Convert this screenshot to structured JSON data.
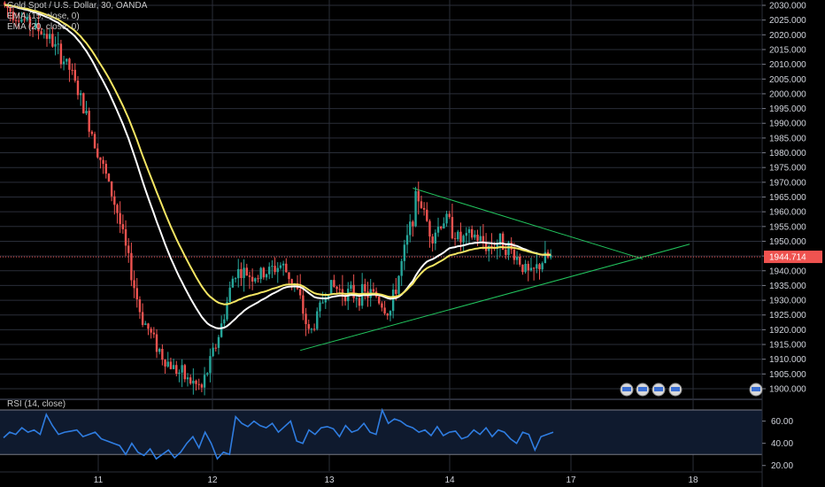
{
  "legend": {
    "title": "Gold Spot / U.S. Dollar, 30, OANDA",
    "ema15": "EMA (15, close, 0)",
    "ema20": "EMA (20, close, 0)"
  },
  "rsi_legend": "RSI (14, close)",
  "current_price_label": "1944.714",
  "colors": {
    "background": "#000000",
    "grid": "#2a2e39",
    "up": "#26a69a",
    "down": "#ef5350",
    "ema15": "#ffffff",
    "ema20": "#f5e663",
    "trendline": "#22c55e",
    "rsi_line": "#2f7de1",
    "rsi_band": "#0f1a2e",
    "price_tag": "#ef5350",
    "price_line": "#ef5350"
  },
  "chart_data": [
    {
      "type": "candlestick",
      "title": "Gold Spot / U.S. Dollar, 30, OANDA",
      "x_tick_labels": [
        "11",
        "12",
        "13",
        "14",
        "17",
        "18"
      ],
      "y_tick_labels": [
        "2030.000",
        "2025.000",
        "2020.000",
        "2015.000",
        "2010.000",
        "2005.000",
        "2000.000",
        "1995.000",
        "1990.000",
        "1985.000",
        "1980.000",
        "1975.000",
        "1970.000",
        "1965.000",
        "1960.000",
        "1955.000",
        "1950.000",
        "1945.000",
        "1940.000",
        "1935.000",
        "1930.000",
        "1925.000",
        "1920.000",
        "1915.000",
        "1910.000",
        "1905.000",
        "1900.000"
      ],
      "ylim": [
        1898.5,
        2032
      ],
      "last_price": 1944.714,
      "anchors_time_price": [
        [
          0.0,
          2031
        ],
        [
          0.5,
          2025
        ],
        [
          1.0,
          2020
        ],
        [
          1.5,
          2008
        ],
        [
          2.0,
          1985
        ],
        [
          2.5,
          1960
        ],
        [
          3.0,
          1925
        ],
        [
          3.5,
          1910
        ],
        [
          4.0,
          1903
        ],
        [
          4.3,
          1900
        ],
        [
          4.7,
          1920
        ],
        [
          5.0,
          1940
        ],
        [
          5.5,
          1938
        ],
        [
          6.0,
          1942
        ],
        [
          6.3,
          1935
        ],
        [
          6.6,
          1918
        ],
        [
          7.0,
          1935
        ],
        [
          7.5,
          1932
        ],
        [
          8.0,
          1932
        ],
        [
          8.3,
          1925
        ],
        [
          8.6,
          1945
        ],
        [
          8.9,
          1966
        ],
        [
          9.2,
          1952
        ],
        [
          9.5,
          1958
        ],
        [
          9.8,
          1950
        ],
        [
          10.1,
          1952
        ],
        [
          10.4,
          1948
        ],
        [
          10.7,
          1950
        ],
        [
          11.0,
          1945
        ],
        [
          11.3,
          1938
        ],
        [
          11.6,
          1944
        ],
        [
          11.8,
          1944.7
        ]
      ],
      "trendlines": [
        {
          "name": "upper",
          "from": [
            8.8,
            1968
          ],
          "to": [
            13.7,
            1944
          ]
        },
        {
          "name": "lower",
          "from": [
            6.4,
            1913
          ],
          "to": [
            14.7,
            1949
          ]
        }
      ]
    },
    {
      "type": "line",
      "title": "RSI (14, close)",
      "y_tick_labels": [
        "60.00",
        "40.00",
        "20.00"
      ],
      "ylim": [
        15,
        78
      ],
      "band": [
        30,
        70
      ],
      "series": [
        {
          "values": [
            45,
            50,
            48,
            54,
            50,
            52,
            48,
            66,
            56,
            48,
            50,
            51,
            52,
            46,
            48,
            50,
            44,
            42,
            40,
            38,
            30,
            40,
            32,
            29,
            35,
            26,
            30,
            34,
            27,
            32,
            40,
            46,
            36,
            50,
            40,
            26,
            32,
            30,
            64,
            58,
            55,
            60,
            56,
            54,
            58,
            50,
            55,
            60,
            42,
            40,
            52,
            48,
            54,
            55,
            53,
            46,
            56,
            50,
            52,
            58,
            50,
            48,
            70,
            58,
            62,
            60,
            56,
            54,
            50,
            52,
            47,
            55,
            47,
            50,
            51,
            44,
            46,
            52,
            48,
            54,
            46,
            52,
            50,
            44,
            40,
            50,
            48,
            34,
            46,
            48,
            50
          ]
        }
      ]
    }
  ]
}
